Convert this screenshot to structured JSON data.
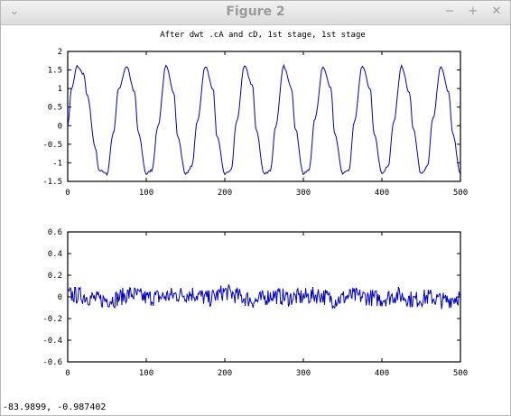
{
  "window": {
    "title": "Figure 2",
    "controls": {
      "menu": "⌄",
      "minimize": "−",
      "maximize": "+",
      "close": "✕"
    }
  },
  "status": {
    "coords": "-83.9899, -0.987402"
  },
  "colors": {
    "line": "#0000c8",
    "axis": "#000000"
  },
  "chart_data": [
    {
      "type": "line",
      "title": "After dwt .cA and cD, 1st stage, 1st stage",
      "xlim": [
        0,
        500
      ],
      "ylim": [
        -1.5,
        2
      ],
      "xticks": [
        0,
        100,
        200,
        300,
        400,
        500
      ],
      "yticks": [
        -1.5,
        -1,
        -0.5,
        0,
        0.5,
        1,
        1.5,
        2
      ],
      "ytick_labels": [
        "-1.5",
        "-1",
        "-0.5",
        "0",
        "0.5",
        "1",
        "1.5",
        "2"
      ],
      "series": [
        {
          "x": [
            0,
            5,
            12,
            20,
            25,
            35,
            40,
            50,
            58,
            65,
            75,
            85,
            90,
            100,
            107,
            115,
            125,
            135,
            140,
            150,
            158,
            165,
            175,
            185,
            190,
            200,
            208,
            215,
            225,
            235,
            240,
            250,
            258,
            265,
            275,
            285,
            290,
            300,
            307,
            315,
            325,
            335,
            340,
            350,
            358,
            365,
            375,
            385,
            390,
            400,
            408,
            415,
            425,
            435,
            440,
            450,
            458,
            465,
            475,
            485,
            490,
            500
          ],
          "y": [
            0.0,
            1.0,
            1.6,
            1.4,
            0.8,
            -0.6,
            -1.2,
            -1.3,
            -0.2,
            1.0,
            1.6,
            0.9,
            -0.2,
            -1.3,
            -1.2,
            0.0,
            1.6,
            0.9,
            -0.3,
            -1.3,
            -1.1,
            0.1,
            1.6,
            1.0,
            -0.3,
            -1.3,
            -1.2,
            0.1,
            1.6,
            1.1,
            -0.1,
            -1.3,
            -1.2,
            0.0,
            1.6,
            1.0,
            -0.1,
            -1.3,
            -1.2,
            0.2,
            1.6,
            1.0,
            -0.2,
            -1.3,
            -1.2,
            0.1,
            1.6,
            1.0,
            -0.2,
            -1.3,
            -1.1,
            0.1,
            1.6,
            0.9,
            -0.1,
            -1.3,
            -1.1,
            0.2,
            1.6,
            0.9,
            -0.2,
            -1.3
          ]
        }
      ]
    },
    {
      "type": "line",
      "title": "",
      "xlim": [
        0,
        500
      ],
      "ylim": [
        -0.6,
        0.6
      ],
      "xticks": [
        0,
        100,
        200,
        300,
        400,
        500
      ],
      "yticks": [
        -0.6,
        -0.4,
        -0.2,
        0,
        0.2,
        0.4,
        0.6
      ],
      "ytick_labels": [
        "-0.6",
        "-0.4",
        "-0.2",
        "0",
        "0.2",
        "0.4",
        "0.6"
      ],
      "series": [
        {
          "x": [
            0,
            20,
            40,
            60,
            80,
            100,
            120,
            140,
            160,
            180,
            200,
            220,
            240,
            260,
            280,
            300,
            320,
            340,
            360,
            380,
            400,
            420,
            440,
            460,
            480,
            500
          ],
          "y": [
            0.02,
            0.01,
            -0.03,
            -0.02,
            0.03,
            -0.01,
            0.0,
            0.02,
            0.03,
            -0.02,
            0.05,
            0.0,
            -0.04,
            0.02,
            -0.01,
            0.0,
            0.02,
            -0.03,
            0.01,
            0.0,
            -0.02,
            0.02,
            -0.03,
            0.0,
            -0.04,
            0.01
          ],
          "noise_amplitude": 0.08
        }
      ]
    }
  ]
}
